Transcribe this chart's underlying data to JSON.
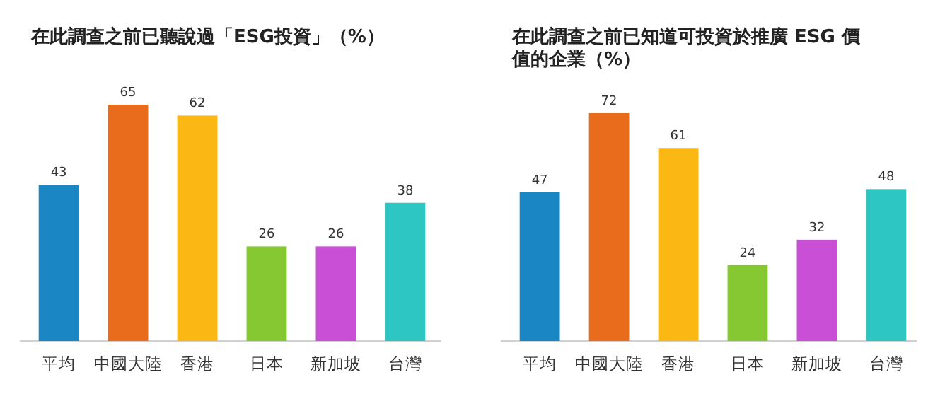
{
  "chart_data": [
    {
      "type": "bar",
      "title": "在此調查之前已聽說過「ESG投資」（%）",
      "categories": [
        "平均",
        "中國大陸",
        "香港",
        "日本",
        "新加坡",
        "台灣"
      ],
      "values": [
        43,
        65,
        62,
        26,
        26,
        38
      ],
      "colors": [
        "#1a87c4",
        "#e86c1c",
        "#fbb714",
        "#86c832",
        "#c84fd6",
        "#2ec6c2"
      ],
      "tick_labels": "x",
      "data_labels": true
    },
    {
      "type": "bar",
      "title": "在此調查之前已知道可投資於推廣 ESG 價值的企業（%）",
      "categories": [
        "平均",
        "中國大陸",
        "香港",
        "日本",
        "新加坡",
        "台灣"
      ],
      "values": [
        47,
        72,
        61,
        24,
        32,
        48
      ],
      "colors": [
        "#1a87c4",
        "#e86c1c",
        "#fbb714",
        "#86c832",
        "#c84fd6",
        "#2ec6c2"
      ],
      "tick_labels": "x",
      "data_labels": true
    }
  ]
}
